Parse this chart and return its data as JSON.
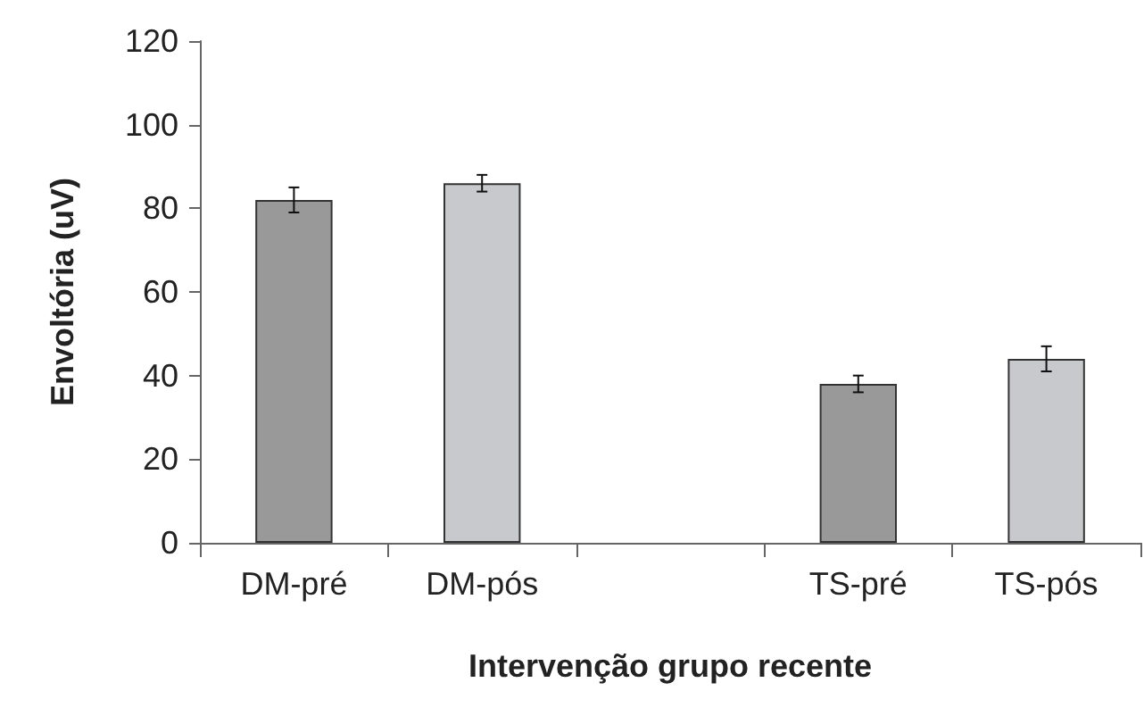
{
  "chart_data": {
    "type": "bar",
    "xlabel": "Intervenção grupo recente",
    "ylabel": "Envoltória (uV)",
    "categories": [
      "DM-pré",
      "DM-pós",
      null,
      "TS-pré",
      "TS-pós"
    ],
    "values": [
      82,
      86,
      null,
      38,
      44
    ],
    "colors": [
      "#999999",
      "#c8c9cc",
      null,
      "#999999",
      "#c8c9cc"
    ],
    "errors": [
      3,
      2,
      null,
      2,
      3
    ],
    "ylim": [
      0,
      120
    ],
    "yticks": [
      0,
      20,
      40,
      60,
      80,
      100,
      120
    ],
    "grid": false
  }
}
